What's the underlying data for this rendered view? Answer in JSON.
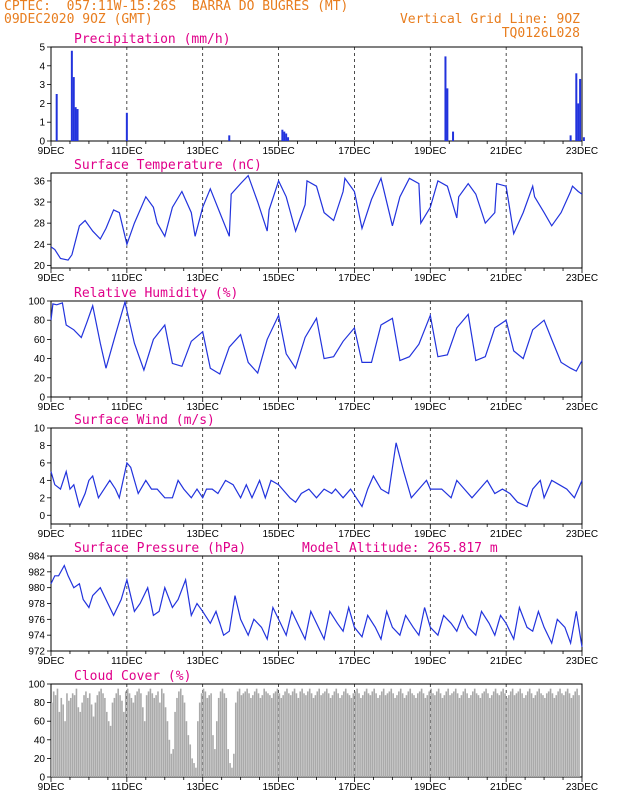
{
  "header": {
    "line1": "CPTEC:  057:11W-15:26S  BARRA DO BUGRES (MT)",
    "line2": "09DEC2020 9OZ (GMT)",
    "grid_note": "Vertical Grid Line: 9OZ",
    "code": "TQ0126L028"
  },
  "colors": {
    "series": "#2233dd",
    "cloud": "#aaaaaa",
    "title": "#e0008a",
    "header": "#e87d1e"
  },
  "x_ticks": [
    "9DEC",
    "11DEC",
    "13DEC",
    "15DEC",
    "17DEC",
    "19DEC",
    "21DEC",
    "23DEC"
  ],
  "chart_data": [
    {
      "type": "bar",
      "title": "Precipitation (mm/h)",
      "ylim": [
        0,
        5
      ],
      "yticks": [
        0,
        1,
        2,
        3,
        4,
        5
      ],
      "x_unit": "days since 9DEC 00Z",
      "x": [
        0.15,
        0.55,
        0.6,
        0.65,
        0.7,
        2.0,
        4.7,
        6.1,
        6.15,
        6.2,
        6.25,
        10.4,
        10.45,
        10.6,
        13.7,
        13.85,
        13.9,
        13.95,
        14.05
      ],
      "values": [
        2.5,
        4.8,
        3.4,
        1.8,
        1.7,
        1.5,
        0.3,
        0.6,
        0.5,
        0.4,
        0.2,
        4.5,
        2.8,
        0.5,
        0.3,
        3.6,
        2.0,
        3.3,
        0.2
      ]
    },
    {
      "type": "line",
      "title": "Surface Temperature (nC)",
      "ylim": [
        19.5,
        37.5
      ],
      "yticks": [
        20,
        24,
        28,
        32,
        36
      ],
      "x": [
        0,
        0.1,
        0.25,
        0.45,
        0.55,
        0.75,
        0.9,
        1.1,
        1.3,
        1.45,
        1.65,
        1.8,
        2.0,
        2.2,
        2.5,
        2.7,
        2.8,
        3.0,
        3.2,
        3.45,
        3.7,
        3.8,
        4.0,
        4.2,
        4.45,
        4.7,
        4.75,
        5.0,
        5.2,
        5.45,
        5.7,
        5.75,
        6.0,
        6.2,
        6.45,
        6.7,
        6.75,
        7.0,
        7.2,
        7.45,
        7.7,
        7.75,
        8.0,
        8.2,
        8.45,
        8.7,
        8.75,
        9.0,
        9.2,
        9.45,
        9.7,
        9.75,
        10.0,
        10.2,
        10.45,
        10.7,
        10.75,
        11.0,
        11.2,
        11.45,
        11.7,
        11.75,
        12.0,
        12.2,
        12.45,
        12.7,
        12.75,
        13.0,
        13.2,
        13.45,
        13.7,
        13.75,
        13.9,
        14.0
      ],
      "values": [
        23.5,
        23,
        21.3,
        21,
        22,
        27.5,
        28.5,
        26.5,
        25,
        27,
        30.5,
        30,
        24,
        28,
        33,
        31,
        28,
        25.5,
        31,
        34,
        30,
        25.5,
        31,
        34.5,
        30,
        25.5,
        33.5,
        35.5,
        37,
        32,
        26.5,
        30.5,
        36,
        33,
        26.5,
        31.5,
        36,
        35,
        30,
        28.5,
        34,
        36.5,
        34,
        27,
        32.5,
        36.5,
        35,
        27.5,
        33,
        36.5,
        35.5,
        28,
        31,
        36,
        35,
        29,
        33,
        35.5,
        33.5,
        28,
        30,
        35.5,
        35,
        26,
        30,
        35,
        33,
        30,
        27.5,
        30,
        34,
        35,
        34,
        33.5
      ]
    },
    {
      "type": "line",
      "title": "Relative Humidity (%)",
      "ylim": [
        0,
        100
      ],
      "yticks": [
        0,
        20,
        40,
        60,
        80,
        100
      ],
      "x": [
        0,
        0.05,
        0.15,
        0.3,
        0.4,
        0.6,
        0.8,
        0.95,
        1.1,
        1.3,
        1.45,
        1.7,
        1.95,
        2.2,
        2.45,
        2.7,
        3.0,
        3.2,
        3.45,
        3.7,
        4.0,
        4.2,
        4.45,
        4.7,
        5.0,
        5.2,
        5.45,
        5.7,
        6.0,
        6.2,
        6.45,
        6.7,
        7.0,
        7.2,
        7.45,
        7.7,
        8.0,
        8.2,
        8.45,
        8.7,
        9.0,
        9.2,
        9.45,
        9.7,
        10.0,
        10.2,
        10.45,
        10.7,
        11.0,
        11.2,
        11.45,
        11.7,
        12.0,
        12.2,
        12.45,
        12.7,
        13.0,
        13.2,
        13.45,
        13.7,
        13.85,
        14.0
      ],
      "values": [
        80,
        97,
        96,
        98,
        75,
        70,
        62,
        78,
        95,
        56,
        30,
        65,
        99,
        56,
        28,
        60,
        75,
        35,
        32,
        58,
        68,
        30,
        24,
        52,
        65,
        36,
        25,
        60,
        85,
        45,
        30,
        62,
        82,
        40,
        42,
        58,
        72,
        36,
        36,
        75,
        82,
        38,
        42,
        55,
        85,
        42,
        44,
        72,
        86,
        38,
        42,
        72,
        80,
        48,
        40,
        70,
        80,
        60,
        36,
        30,
        27,
        38
      ]
    },
    {
      "type": "line",
      "title": "Surface Wind (m/s)",
      "ylim": [
        -1,
        10
      ],
      "yticks": [
        0,
        2,
        4,
        6,
        8,
        10
      ],
      "x": [
        0,
        0.1,
        0.25,
        0.4,
        0.5,
        0.6,
        0.75,
        0.9,
        1.0,
        1.1,
        1.25,
        1.4,
        1.55,
        1.7,
        1.8,
        2.0,
        2.1,
        2.3,
        2.5,
        2.65,
        2.8,
        3.0,
        3.2,
        3.35,
        3.5,
        3.7,
        3.85,
        4.0,
        4.1,
        4.25,
        4.4,
        4.6,
        4.8,
        5.0,
        5.15,
        5.3,
        5.5,
        5.65,
        5.8,
        6.0,
        6.1,
        6.2,
        6.3,
        6.45,
        6.6,
        6.8,
        7.0,
        7.2,
        7.4,
        7.5,
        7.7,
        7.9,
        8.05,
        8.2,
        8.35,
        8.5,
        8.7,
        8.9,
        9.1,
        9.3,
        9.5,
        9.7,
        9.9,
        10.0,
        10.3,
        10.55,
        10.7,
        10.9,
        11.1,
        11.3,
        11.5,
        11.7,
        11.9,
        12.1,
        12.3,
        12.55,
        12.7,
        12.9,
        13.0,
        13.2,
        13.4,
        13.6,
        13.8,
        14.0
      ],
      "values": [
        5,
        3.5,
        3,
        5,
        3,
        3.5,
        1,
        2.5,
        4,
        4.5,
        2,
        3,
        4,
        3,
        2,
        6,
        5.5,
        2.5,
        4,
        3,
        3,
        2,
        2,
        4,
        3,
        2,
        3,
        2,
        3,
        3,
        2.5,
        4,
        3.5,
        2,
        3.5,
        2,
        4,
        2,
        4,
        3.5,
        3,
        2.5,
        2,
        1.5,
        2.5,
        3,
        2,
        3,
        2.5,
        3,
        2,
        3,
        2,
        1,
        3,
        4.5,
        3,
        2.5,
        8.3,
        5,
        2,
        3,
        4,
        3,
        3,
        2,
        4,
        3,
        2,
        3,
        4,
        2.5,
        3,
        2.5,
        1.5,
        1,
        3,
        4,
        2,
        4,
        3.5,
        3,
        2,
        4
      ]
    },
    {
      "type": "line",
      "title": "Surface Pressure (hPa)",
      "annotation": "Model Altitude: 265.817 m",
      "ylim": [
        972,
        984
      ],
      "yticks": [
        972,
        974,
        976,
        978,
        980,
        982,
        984
      ],
      "x": [
        0,
        0.1,
        0.2,
        0.35,
        0.45,
        0.6,
        0.75,
        0.85,
        1.0,
        1.1,
        1.3,
        1.5,
        1.65,
        1.85,
        2.0,
        2.2,
        2.35,
        2.55,
        2.7,
        2.85,
        3.0,
        3.2,
        3.35,
        3.55,
        3.7,
        3.85,
        4.0,
        4.2,
        4.35,
        4.55,
        4.7,
        4.85,
        5.0,
        5.2,
        5.35,
        5.55,
        5.7,
        5.85,
        6.0,
        6.2,
        6.35,
        6.55,
        6.7,
        6.85,
        7.0,
        7.2,
        7.35,
        7.55,
        7.7,
        7.85,
        8.0,
        8.2,
        8.35,
        8.55,
        8.7,
        8.85,
        9.0,
        9.2,
        9.35,
        9.55,
        9.7,
        9.85,
        10.0,
        10.2,
        10.35,
        10.55,
        10.7,
        10.85,
        11.0,
        11.2,
        11.35,
        11.55,
        11.7,
        11.85,
        12.0,
        12.2,
        12.35,
        12.55,
        12.7,
        12.85,
        13.0,
        13.2,
        13.35,
        13.55,
        13.7,
        13.85,
        14.0
      ],
      "values": [
        980.5,
        981.5,
        981.5,
        982.8,
        981.5,
        980,
        980.5,
        978.5,
        977.5,
        979,
        980,
        978,
        976.5,
        978.5,
        981,
        977,
        978,
        980,
        976.5,
        977,
        980,
        977.5,
        978.5,
        981,
        976.5,
        978,
        977,
        975.5,
        977,
        974,
        974.5,
        979,
        976,
        974,
        976,
        975,
        973.5,
        977.5,
        976,
        974,
        977,
        975,
        973.5,
        977,
        975.5,
        973.5,
        977,
        975.5,
        974.5,
        977.5,
        975,
        973.8,
        976.5,
        975,
        973.5,
        977,
        975,
        974,
        976.5,
        975,
        974,
        977.5,
        975,
        974,
        976.5,
        975.5,
        974.5,
        976.5,
        975,
        974,
        977,
        975.5,
        974,
        976.5,
        975.5,
        973.5,
        977.5,
        975,
        974.5,
        977,
        975,
        973,
        976,
        975,
        973,
        977,
        972.5
      ]
    },
    {
      "type": "bar",
      "title": "Cloud Cover (%)",
      "ylim": [
        0,
        100
      ],
      "yticks": [
        0,
        20,
        40,
        60,
        80,
        100
      ],
      "x_start": 0,
      "x_step": 0.05,
      "values": [
        80,
        92,
        88,
        95,
        70,
        85,
        78,
        60,
        90,
        82,
        85,
        90,
        88,
        95,
        75,
        70,
        80,
        88,
        92,
        85,
        90,
        78,
        65,
        80,
        88,
        92,
        95,
        90,
        85,
        70,
        60,
        55,
        80,
        85,
        90,
        95,
        88,
        82,
        70,
        92,
        95,
        90,
        85,
        80,
        88,
        92,
        95,
        90,
        75,
        60,
        88,
        92,
        95,
        90,
        85,
        88,
        92,
        80,
        95,
        90,
        75,
        60,
        40,
        25,
        30,
        70,
        85,
        92,
        95,
        88,
        80,
        60,
        45,
        35,
        20,
        15,
        10,
        60,
        80,
        90,
        95,
        92,
        85,
        88,
        90,
        45,
        30,
        60,
        85,
        92,
        95,
        90,
        85,
        30,
        15,
        10,
        25,
        80,
        92,
        95,
        88,
        90,
        92,
        95,
        90,
        85,
        88,
        92,
        95,
        90,
        85,
        88,
        95,
        92,
        90,
        88,
        85,
        90,
        92,
        95,
        90,
        85,
        88,
        92,
        95,
        90,
        88,
        92,
        95,
        90,
        85,
        92,
        95,
        90,
        88,
        92,
        95,
        90,
        85,
        88,
        92,
        95,
        88,
        90,
        92,
        95,
        90,
        85,
        88,
        92,
        95,
        90,
        85,
        88,
        92,
        95,
        90,
        88,
        85,
        90,
        92,
        95,
        90,
        85,
        88,
        92,
        95,
        90,
        88,
        92,
        95,
        90,
        85,
        88,
        92,
        95,
        88,
        90,
        92,
        95,
        90,
        85,
        88,
        92,
        95,
        90,
        85,
        88,
        92,
        95,
        90,
        88,
        85,
        90,
        92,
        95,
        90,
        85,
        88,
        92,
        95,
        90,
        88,
        92,
        95,
        90,
        85,
        88,
        92,
        95,
        88,
        90,
        92,
        95,
        90,
        85,
        88,
        92,
        95,
        90,
        85,
        88,
        92,
        95,
        90,
        88,
        85,
        90,
        92,
        95,
        90,
        85,
        88,
        92,
        95,
        90,
        88,
        92,
        95,
        90,
        85,
        88,
        92,
        95,
        88,
        90,
        92,
        95,
        90,
        85,
        88,
        92,
        95,
        90,
        85,
        88,
        92,
        95,
        90,
        88,
        85,
        90,
        92,
        95,
        90,
        85,
        88,
        92,
        95,
        90,
        88,
        92,
        95,
        90,
        85,
        88,
        92,
        95,
        88
      ]
    }
  ]
}
